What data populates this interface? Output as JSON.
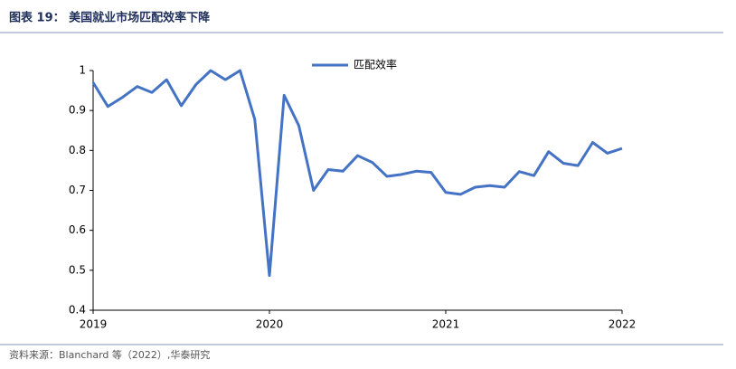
{
  "chart_data": {
    "type": "line",
    "title": "图表 19：  美国就业市场匹配效率下降",
    "source": "资料来源：Blanchard 等（2022）,华泰研究",
    "categories": [
      "2019",
      null,
      null,
      null,
      null,
      null,
      null,
      null,
      null,
      null,
      null,
      null,
      "2020",
      null,
      null,
      null,
      null,
      null,
      null,
      null,
      null,
      null,
      null,
      null,
      "2021",
      null,
      null,
      null,
      null,
      null,
      null,
      null,
      null,
      null,
      null,
      null,
      "2022"
    ],
    "series": [
      {
        "name": "匹配效率",
        "color": "#4472c4",
        "values": [
          0.97,
          0.91,
          0.933,
          0.96,
          0.945,
          0.977,
          0.912,
          0.965,
          1.0,
          0.977,
          1.0,
          0.878,
          0.487,
          0.938,
          0.862,
          0.7,
          0.752,
          0.748,
          0.787,
          0.77,
          0.735,
          0.74,
          0.748,
          0.745,
          0.695,
          0.69,
          0.708,
          0.712,
          0.708,
          0.747,
          0.737,
          0.797,
          0.768,
          0.762,
          0.82,
          0.793,
          0.805
        ]
      }
    ],
    "ylim": [
      0.4,
      1.0
    ],
    "yticks": [
      0.4,
      0.5,
      0.6,
      0.7,
      0.8,
      0.9,
      1
    ],
    "grid": false,
    "legend": "top"
  }
}
